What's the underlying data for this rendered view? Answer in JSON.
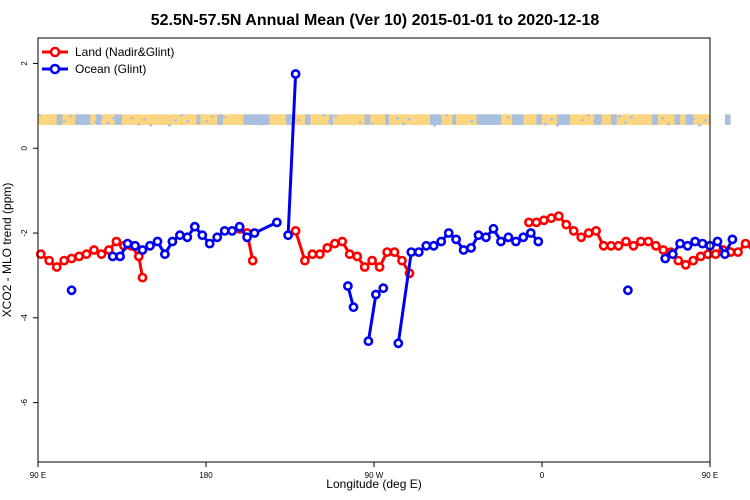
{
  "chart_data": {
    "type": "line",
    "title": "52.5N-57.5N Annual Mean (Ver 10)   2015-01-01 to 2020-12-18",
    "xlabel": "Longitude (deg E)",
    "ylabel": "XCO2 - MLO trend (ppm)",
    "xlim": [
      90,
      450
    ],
    "ylim": [
      -7.4,
      2.6
    ],
    "x_ticks": [
      {
        "value": 90,
        "label": "90 E"
      },
      {
        "value": 180,
        "label": "180"
      },
      {
        "value": 270,
        "label": "90 W"
      },
      {
        "value": 360,
        "label": "0"
      },
      {
        "value": 450,
        "label": "90 E"
      },
      {
        "value": 540,
        "label": "180"
      }
    ],
    "y_ticks": [
      {
        "value": 2,
        "label": "2"
      },
      {
        "value": 0,
        "label": "0"
      },
      {
        "value": -2,
        "label": "-2"
      },
      {
        "value": -4,
        "label": "-4"
      },
      {
        "value": -6,
        "label": "-6"
      }
    ],
    "legend_position": "top-left",
    "land_strip": {
      "y_low": 0.55,
      "y_high": 0.8,
      "land_color": "#fcd581",
      "ocean_color": "#a8bfe0"
    },
    "series": [
      {
        "name": "Land (Nadir&Glint)",
        "color": "#ff0000",
        "segments": [
          [
            [
              91.5,
              -2.5
            ],
            [
              96,
              -2.65
            ],
            [
              100,
              -2.8
            ],
            [
              104,
              -2.65
            ],
            [
              108,
              -2.6
            ],
            [
              112,
              -2.55
            ],
            [
              116,
              -2.5
            ],
            [
              120,
              -2.4
            ],
            [
              124,
              -2.5
            ],
            [
              128,
              -2.4
            ],
            [
              132,
              -2.2
            ],
            [
              136,
              -2.3
            ],
            [
              140,
              -2.3
            ],
            [
              144,
              -2.55
            ],
            [
              146,
              -3.05
            ]
          ],
          [
            [
              198,
              -1.9
            ],
            [
              202,
              -2.0
            ],
            [
              205,
              -2.65
            ]
          ],
          [
            [
              228,
              -1.95
            ],
            [
              233,
              -2.65
            ],
            [
              237,
              -2.5
            ],
            [
              241,
              -2.5
            ],
            [
              245,
              -2.35
            ],
            [
              249,
              -2.25
            ],
            [
              253,
              -2.2
            ],
            [
              257,
              -2.5
            ],
            [
              261,
              -2.55
            ],
            [
              265,
              -2.8
            ],
            [
              269,
              -2.65
            ],
            [
              273,
              -2.8
            ],
            [
              277,
              -2.45
            ],
            [
              281,
              -2.45
            ],
            [
              285,
              -2.65
            ],
            [
              289,
              -2.95
            ]
          ],
          [
            [
              353,
              -1.75
            ],
            [
              357,
              -1.75
            ],
            [
              361,
              -1.7
            ],
            [
              365,
              -1.65
            ],
            [
              369,
              -1.6
            ],
            [
              373,
              -1.8
            ],
            [
              377,
              -1.95
            ],
            [
              381,
              -2.1
            ],
            [
              385,
              -2.0
            ],
            [
              389,
              -1.95
            ],
            [
              393,
              -2.3
            ],
            [
              397,
              -2.3
            ],
            [
              401,
              -2.3
            ],
            [
              405,
              -2.2
            ],
            [
              409,
              -2.3
            ],
            [
              413,
              -2.2
            ],
            [
              417,
              -2.2
            ],
            [
              421,
              -2.3
            ],
            [
              425,
              -2.4
            ],
            [
              429,
              -2.45
            ],
            [
              433,
              -2.65
            ],
            [
              437,
              -2.75
            ],
            [
              441,
              -2.65
            ],
            [
              445,
              -2.55
            ],
            [
              449,
              -2.5
            ],
            [
              453,
              -2.5
            ],
            [
              457,
              -2.4
            ],
            [
              461,
              -2.45
            ],
            [
              465,
              -2.45
            ],
            [
              469,
              -2.25
            ],
            [
              473,
              -2.3
            ],
            [
              477,
              -2.3
            ],
            [
              481,
              -2.5
            ],
            [
              484,
              -3.05
            ]
          ]
        ]
      },
      {
        "name": "Ocean (Glint)",
        "color": "#0000ee",
        "segments": [
          [
            [
              108,
              -3.35
            ]
          ],
          [
            [
              130,
              -2.55
            ],
            [
              134,
              -2.55
            ],
            [
              138,
              -2.25
            ],
            [
              142,
              -2.3
            ],
            [
              146,
              -2.4
            ],
            [
              150,
              -2.3
            ],
            [
              154,
              -2.2
            ],
            [
              158,
              -2.5
            ],
            [
              162,
              -2.2
            ],
            [
              166,
              -2.05
            ],
            [
              170,
              -2.1
            ],
            [
              174,
              -1.85
            ],
            [
              178,
              -2.05
            ],
            [
              182,
              -2.25
            ],
            [
              186,
              -2.1
            ],
            [
              190,
              -1.95
            ],
            [
              194,
              -1.95
            ],
            [
              198,
              -1.85
            ],
            [
              202,
              -2.1
            ],
            [
              206,
              -2.0
            ],
            [
              218,
              -1.75
            ]
          ],
          [
            [
              224,
              -2.05
            ],
            [
              228,
              1.75
            ]
          ],
          [
            [
              256,
              -3.25
            ],
            [
              259,
              -3.75
            ]
          ],
          [
            [
              267,
              -4.55
            ],
            [
              271,
              -3.45
            ],
            [
              275,
              -3.3
            ]
          ],
          [
            [
              283,
              -4.6
            ],
            [
              290,
              -2.45
            ],
            [
              294,
              -2.45
            ],
            [
              298,
              -2.3
            ],
            [
              302,
              -2.3
            ],
            [
              306,
              -2.2
            ],
            [
              310,
              -2.0
            ],
            [
              314,
              -2.15
            ],
            [
              318,
              -2.4
            ],
            [
              322,
              -2.35
            ],
            [
              326,
              -2.05
            ],
            [
              330,
              -2.1
            ],
            [
              334,
              -1.9
            ],
            [
              338,
              -2.2
            ],
            [
              342,
              -2.1
            ],
            [
              346,
              -2.2
            ],
            [
              350,
              -2.1
            ],
            [
              354,
              -2.0
            ],
            [
              358,
              -2.2
            ]
          ],
          [
            [
              406,
              -3.35
            ]
          ],
          [
            [
              426,
              -2.6
            ],
            [
              430,
              -2.5
            ],
            [
              434,
              -2.25
            ],
            [
              438,
              -2.3
            ],
            [
              442,
              -2.2
            ],
            [
              446,
              -2.25
            ],
            [
              450,
              -2.3
            ],
            [
              454,
              -2.2
            ],
            [
              458,
              -2.5
            ],
            [
              462,
              -2.15
            ]
          ]
        ]
      }
    ]
  }
}
